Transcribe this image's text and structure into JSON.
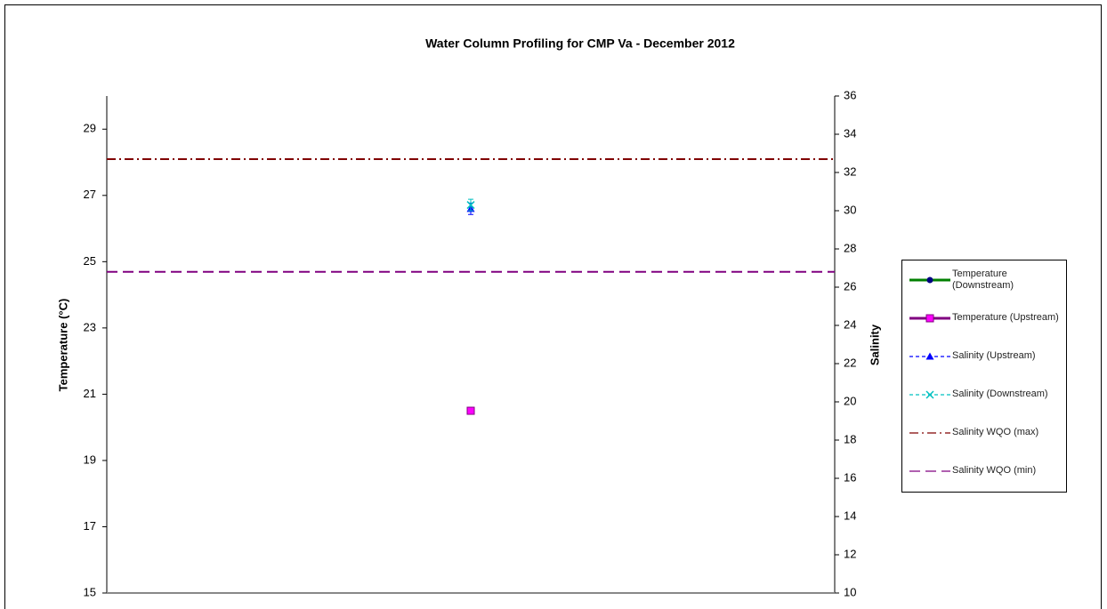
{
  "chart_data": {
    "type": "line",
    "title": "Water Column Profiling for CMP Va - December 2012",
    "ylabel": "Temperature (°C)",
    "y2label": "Salinity",
    "categories": [
      null
    ],
    "ylim": [
      15,
      30
    ],
    "yticks": [
      15,
      17,
      19,
      21,
      23,
      25,
      27,
      29
    ],
    "y2lim": [
      10,
      36
    ],
    "y2ticks": [
      10,
      12,
      14,
      16,
      18,
      20,
      22,
      24,
      26,
      28,
      30,
      32,
      34,
      36
    ],
    "legend": "right",
    "series": [
      {
        "name": "Temperature (Downstream)",
        "color": "#008000",
        "marker_color": "#000080",
        "marker": "circle",
        "style": "solid",
        "axis": "y",
        "values": [
          20.5
        ],
        "errors": [
          0.1
        ]
      },
      {
        "name": "Temperature (Upstream)",
        "color": "#800080",
        "marker_color": "#ff00ff",
        "marker": "square",
        "style": "solid",
        "axis": "y",
        "values": [
          20.5
        ],
        "errors": [
          0.1
        ]
      },
      {
        "name": "Salinity (Upstream)",
        "color": "#0000ff",
        "marker_color": "#0000ff",
        "marker": "triangle",
        "style": "dashed",
        "axis": "y2",
        "values": [
          30.1
        ],
        "errors": [
          0.3
        ]
      },
      {
        "name": "Salinity (Downstream)",
        "color": "#00c0c0",
        "marker_color": "#00c0c0",
        "marker": "x",
        "style": "dashed",
        "axis": "y2",
        "values": [
          30.3
        ],
        "errors": [
          0.3
        ]
      },
      {
        "name": "Salinity WQO (max)",
        "color": "#800000",
        "style": "dashdot",
        "axis": "y2",
        "values": [
          32.7
        ],
        "span": true
      },
      {
        "name": "Salinity WQO (min)",
        "color": "#800080",
        "style": "longdash",
        "axis": "y2",
        "values": [
          26.8
        ],
        "span": true
      }
    ]
  }
}
